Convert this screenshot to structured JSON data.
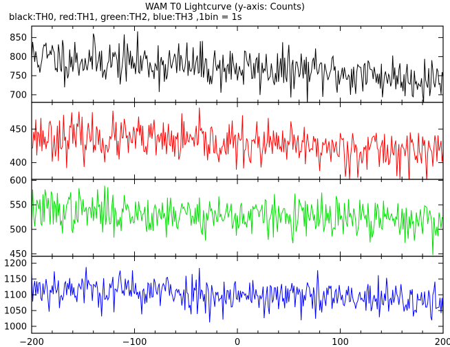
{
  "chart_data": [
    {
      "type": "line",
      "title": "WAM T0 Lightcurve (y-axis: Counts)",
      "subtitle": "black:TH0, red:TH1, green:TH2, blue:TH3 ,1bin = 1s",
      "xlim": [
        -200,
        200
      ],
      "x_ticks": [
        -200,
        -100,
        0,
        100,
        200
      ],
      "x_tick_labels": [
        "−200",
        "−100",
        "0",
        "100",
        "200"
      ],
      "grid": false,
      "bin_seconds": 1,
      "series": [
        {
          "name": "TH0",
          "color": "#000000",
          "ylim": [
            680,
            880
          ],
          "y_ticks": [
            700,
            750,
            800,
            850
          ],
          "x": [
            -200,
            200
          ],
          "values": [
            800,
            740
          ],
          "noise": 30,
          "seed": 11
        },
        {
          "name": "TH1",
          "color": "#ff0000",
          "ylim": [
            375,
            490
          ],
          "y_ticks": [
            400,
            450
          ],
          "x": [
            -200,
            200
          ],
          "values": [
            440,
            415
          ],
          "noise": 17,
          "seed": 23
        },
        {
          "name": "TH2",
          "color": "#00dd00",
          "ylim": [
            445,
            602
          ],
          "y_ticks": [
            450,
            500,
            550,
            600
          ],
          "x": [
            -200,
            200
          ],
          "values": [
            540,
            515
          ],
          "noise": 22,
          "seed": 37
        },
        {
          "name": "TH3",
          "color": "#0000ff",
          "ylim": [
            978,
            1222
          ],
          "y_ticks": [
            1000,
            1050,
            1100,
            1150,
            1200
          ],
          "x": [
            -200,
            200
          ],
          "values": [
            1125,
            1075
          ],
          "noise": 32,
          "seed": 53
        }
      ]
    }
  ]
}
